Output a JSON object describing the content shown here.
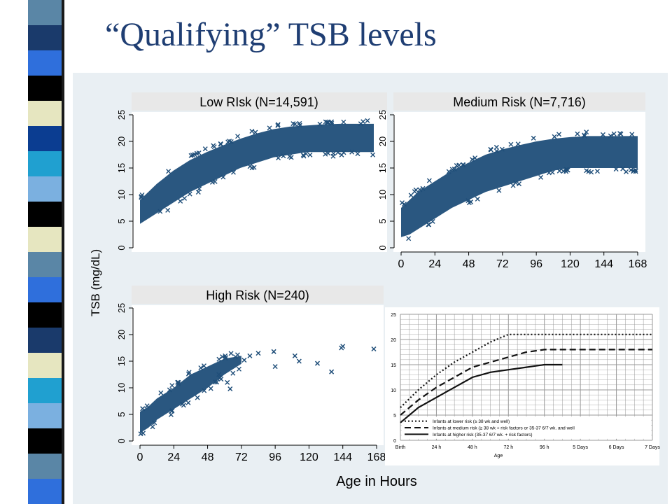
{
  "title": "“Qualifying” TSB levels",
  "stripe_colors": [
    "#5a86a6",
    "#1a3a6b",
    "#2f6fdc",
    "#000000",
    "#e6e6c0",
    "#0b3d91",
    "#20a0d0",
    "#7bb0e0",
    "#000000",
    "#e6e6c0",
    "#5a86a6",
    "#2f6fdc",
    "#000000",
    "#1a3a6b",
    "#e6e6c0",
    "#20a0d0",
    "#7bb0e0",
    "#000000",
    "#5a86a6",
    "#2f6fdc"
  ],
  "colors": {
    "marker": "#1f4e79",
    "header_bg": "#e8e8e8"
  },
  "chart_data": [
    {
      "type": "scatter",
      "title": "Low RIsk (N=14,591)",
      "marker": "x",
      "xlabel": "Age in Hours",
      "ylabel": "TSB (mg/dL)",
      "xlim": [
        0,
        168
      ],
      "ylim": [
        0,
        25
      ],
      "xticks": [
        "0",
        "24",
        "48",
        "72",
        "96",
        "120",
        "144",
        "168"
      ],
      "yticks": [
        "0",
        "5",
        "10",
        "15",
        "20",
        "25"
      ],
      "band": {
        "x": [
          0,
          6,
          12,
          24,
          36,
          48,
          60,
          72,
          84,
          96,
          108,
          120,
          132,
          144,
          156,
          168
        ],
        "lower": [
          4.5,
          5.5,
          6.5,
          8.5,
          10.5,
          12.0,
          13.5,
          15.0,
          16.0,
          17.0,
          17.5,
          18.0,
          18.0,
          18.0,
          18.0,
          18.0
        ],
        "upper": [
          9.0,
          10.5,
          12.0,
          14.5,
          16.5,
          18.0,
          19.3,
          20.5,
          21.5,
          22.3,
          22.8,
          23.0,
          23.2,
          23.3,
          23.3,
          23.3
        ]
      }
    },
    {
      "type": "scatter",
      "title": "Medium Risk (N=7,716)",
      "marker": "x",
      "xlabel": "Age in Hours",
      "ylabel": "TSB (mg/dL)",
      "xlim": [
        0,
        168
      ],
      "ylim": [
        0,
        25
      ],
      "xticks": [
        "0",
        "24",
        "48",
        "72",
        "96",
        "120",
        "144",
        "168"
      ],
      "yticks": [
        "0",
        "5",
        "10",
        "15",
        "20",
        "25"
      ],
      "band": {
        "x": [
          0,
          6,
          12,
          24,
          36,
          48,
          60,
          72,
          84,
          96,
          108,
          120,
          132,
          144,
          156,
          168
        ],
        "lower": [
          2.0,
          2.5,
          3.5,
          5.5,
          7.5,
          9.0,
          10.5,
          11.5,
          12.5,
          13.5,
          14.5,
          15.0,
          15.0,
          15.0,
          15.0,
          15.0
        ],
        "upper": [
          7.5,
          9.0,
          10.5,
          12.5,
          14.5,
          16.0,
          17.5,
          18.5,
          19.3,
          20.0,
          20.5,
          20.8,
          21.0,
          21.0,
          21.0,
          21.0
        ]
      }
    },
    {
      "type": "scatter",
      "title": "High Risk (N=240)",
      "marker": "x",
      "xlabel": "Age in Hours",
      "ylabel": "TSB (mg/dL)",
      "xlim": [
        0,
        168
      ],
      "ylim": [
        0,
        25
      ],
      "xticks": [
        "0",
        "24",
        "48",
        "72",
        "96",
        "120",
        "144",
        "168"
      ],
      "yticks": [
        "0",
        "5",
        "10",
        "15",
        "20",
        "25"
      ],
      "band": {
        "x": [
          0,
          6,
          12,
          24,
          36,
          48,
          60,
          72
        ],
        "lower": [
          1.5,
          2.5,
          4.0,
          6.0,
          8.0,
          10.0,
          12.5,
          14.5
        ],
        "upper": [
          5.5,
          6.5,
          8.0,
          10.0,
          12.5,
          14.0,
          15.5,
          16.0
        ]
      },
      "points": [
        {
          "x": 74,
          "y": 15.2
        },
        {
          "x": 78,
          "y": 16.0
        },
        {
          "x": 84,
          "y": 16.5
        },
        {
          "x": 95,
          "y": 16.8
        },
        {
          "x": 96,
          "y": 14.0
        },
        {
          "x": 110,
          "y": 16.0
        },
        {
          "x": 113,
          "y": 15.0
        },
        {
          "x": 126,
          "y": 14.6
        },
        {
          "x": 136,
          "y": 13.0
        },
        {
          "x": 143,
          "y": 17.5
        },
        {
          "x": 144,
          "y": 17.8
        },
        {
          "x": 166,
          "y": 17.3
        },
        {
          "x": 64,
          "y": 9.8
        },
        {
          "x": 62,
          "y": 11.0
        },
        {
          "x": 56,
          "y": 12.5
        }
      ]
    },
    {
      "type": "line",
      "legend": [
        "Infants at lower risk (≥ 38 wk and well)",
        "Infants at medium risk (≥ 38 wk + risk factors or 35-37 6/7 wk. and well",
        "Infants at higher risk (35-37 6/7 wk. + risk factors)"
      ],
      "xlabel": "Age",
      "xticks": [
        "Birth",
        "24 h",
        "48 h",
        "72 h",
        "96 h",
        "5 Days",
        "6 Days",
        "7 Days"
      ],
      "yticks": [
        "0",
        "5",
        "10",
        "15",
        "20",
        "25"
      ],
      "ylim": [
        0,
        25
      ],
      "series": [
        {
          "values": [
            6.5,
            10.0,
            13.0,
            15.5,
            17.5,
            19.5,
            21.0,
            21.0,
            21.0,
            21.0,
            21.0,
            21.0,
            21.0,
            21.0,
            21.0
          ]
        },
        {
          "values": [
            5.0,
            8.0,
            10.5,
            12.5,
            14.5,
            15.5,
            16.5,
            17.5,
            18.0,
            18.0,
            18.0,
            18.0,
            18.0,
            18.0,
            18.0
          ]
        },
        {
          "values": [
            3.5,
            6.5,
            8.5,
            10.5,
            12.5,
            13.5,
            14.0,
            14.5,
            15.0,
            15.0,
            null,
            null,
            null,
            null,
            null
          ]
        }
      ],
      "x_index": [
        0,
        0.5,
        1,
        1.5,
        2,
        2.5,
        3,
        3.5,
        4,
        4.5,
        5,
        5.5,
        6,
        6.5,
        7
      ]
    }
  ]
}
